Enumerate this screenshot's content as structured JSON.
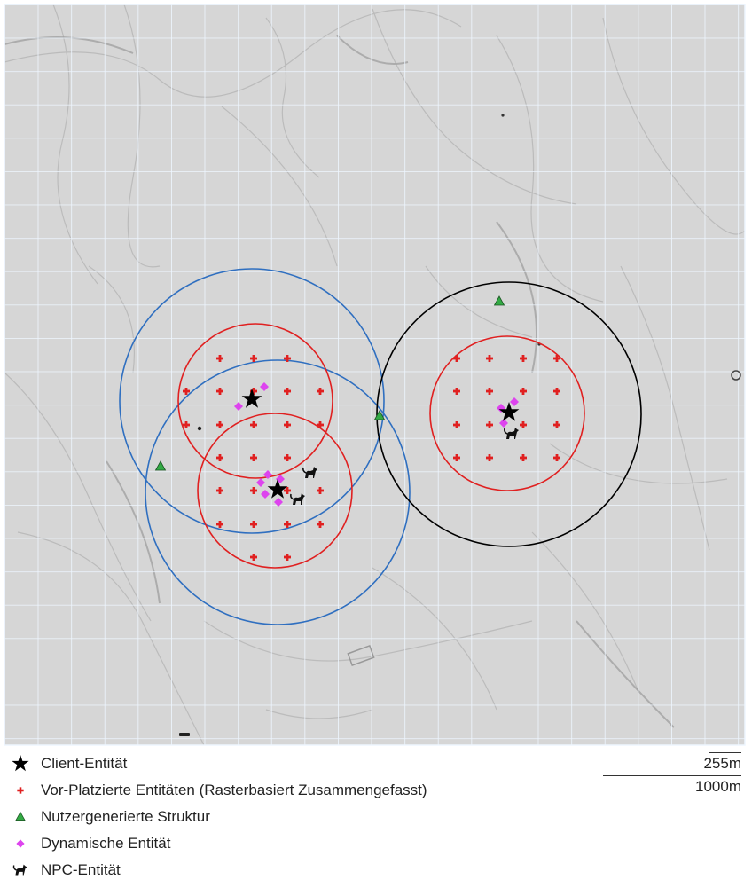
{
  "legend": {
    "client": "Client-Entität",
    "preplaced": "Vor-Platzierte Entitäten (Rasterbasiert Zusammengefasst)",
    "structure": "Nutzergenerierte Struktur",
    "dynamic": "Dynamische Entität",
    "npc": "NPC-Entität"
  },
  "scale": {
    "small": "255m",
    "large": "1000m"
  },
  "colors": {
    "map_bg": "#d6d6d6",
    "grid": "#eef6ff",
    "client_radius_blue": "#2f6fc0",
    "client_radius_black": "#000000",
    "preplaced_red": "#e02020",
    "dynamic": "#dd44ee",
    "structure": "#33aa44"
  },
  "icons": {
    "client": "star-icon",
    "preplaced": "plus-icon",
    "structure": "triangle-icon",
    "dynamic": "diamond-icon",
    "npc": "wolf-icon"
  }
}
